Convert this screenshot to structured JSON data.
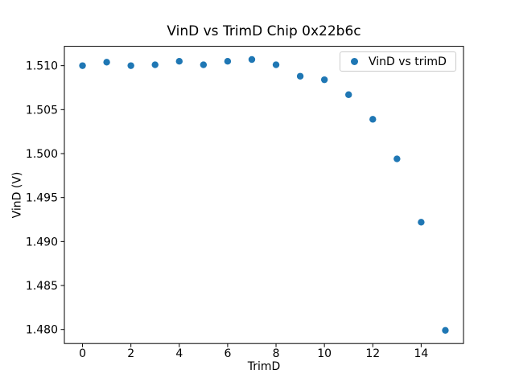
{
  "figure": {
    "background": "#ffffff"
  },
  "chart_data": {
    "type": "scatter",
    "title": "VinD vs TrimD Chip 0x22b6c",
    "xlabel": "TrimD",
    "ylabel": "VinD (V)",
    "series": [
      {
        "name": "VinD vs trimD",
        "color": "#1f77b4",
        "marker": "circle",
        "x": [
          0,
          1,
          2,
          3,
          4,
          5,
          6,
          7,
          8,
          9,
          10,
          11,
          12,
          13,
          14,
          15
        ],
        "y": [
          1.51,
          1.5104,
          1.51,
          1.5101,
          1.5105,
          1.5101,
          1.5105,
          1.5107,
          1.5101,
          1.5088,
          1.5084,
          1.5067,
          1.5039,
          1.4994,
          1.4922,
          1.4799
        ]
      }
    ],
    "xlim": [
      -0.75,
      15.75
    ],
    "ylim": [
      1.4784,
      1.5122
    ],
    "xticks": [
      0,
      2,
      4,
      6,
      8,
      10,
      12,
      14
    ],
    "yticks": [
      1.48,
      1.485,
      1.49,
      1.495,
      1.5,
      1.505,
      1.51
    ],
    "ytick_decimals": 3,
    "grid": false,
    "legend": {
      "position": "upper right",
      "entries": [
        "VinD vs trimD"
      ]
    },
    "axis_color": "#000000",
    "legend_border_color": "#cccccc"
  }
}
